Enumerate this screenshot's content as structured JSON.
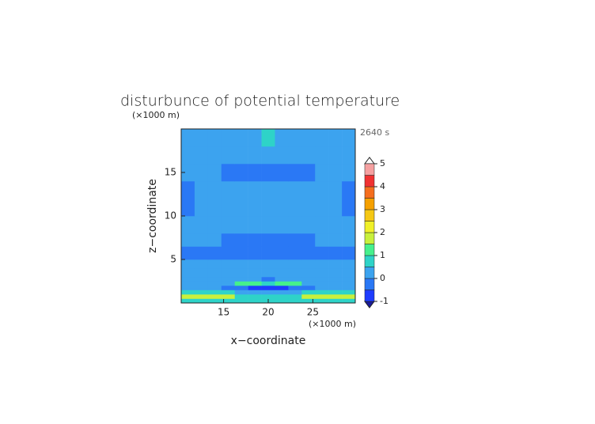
{
  "chart_data": {
    "type": "contour",
    "title": "disturbunce of potential temperature",
    "xlabel": "x−coordinate",
    "ylabel": "z−coordinate",
    "x_unit": "(×1000 m)",
    "y_unit": "(×1000 m)",
    "time_label": "2640 s",
    "xlim": [
      10.25,
      29.75
    ],
    "ylim": [
      0,
      20
    ],
    "xticks": [
      15,
      20,
      25
    ],
    "yticks": [
      5,
      10,
      15
    ],
    "x_edges": [
      10.25,
      11.75,
      13.25,
      14.75,
      16.25,
      17.75,
      19.25,
      20.75,
      22.25,
      23.75,
      25.25,
      26.75,
      28.25,
      29.75
    ],
    "y_edges": [
      0,
      0.5,
      1,
      1.5,
      2,
      2.5,
      3,
      4,
      5,
      6.5,
      8,
      10,
      12,
      14,
      16,
      18,
      20
    ],
    "z": [
      [
        0.75,
        0.75,
        0.75,
        0.75,
        0.75,
        0.75,
        0.75,
        0.75,
        0.75,
        0.75,
        0.75,
        0.75,
        0.75
      ],
      [
        1.75,
        1.75,
        1.75,
        1.75,
        0.75,
        0.75,
        0.75,
        0.75,
        0.75,
        1.75,
        1.75,
        1.75,
        1.75
      ],
      [
        0.75,
        0.75,
        0.75,
        0.75,
        0.25,
        0.25,
        0.25,
        0.25,
        0.25,
        0.75,
        0.75,
        0.75,
        0.75
      ],
      [
        0.25,
        0.25,
        0.25,
        -0.25,
        -0.25,
        -0.75,
        -0.75,
        -0.75,
        -0.25,
        -0.25,
        0.25,
        0.25,
        0.25
      ],
      [
        0.25,
        0.25,
        0.25,
        0.25,
        1.25,
        1.25,
        0.75,
        1.25,
        1.25,
        0.25,
        0.25,
        0.25,
        0.25
      ],
      [
        0.25,
        0.25,
        0.25,
        0.25,
        0.25,
        0.25,
        -0.25,
        0.25,
        0.25,
        0.25,
        0.25,
        0.25,
        0.25
      ],
      [
        0.25,
        0.25,
        0.25,
        0.25,
        0.25,
        0.25,
        0.25,
        0.25,
        0.25,
        0.25,
        0.25,
        0.25,
        0.25
      ],
      [
        0.25,
        0.25,
        0.25,
        0.25,
        0.25,
        0.25,
        0.25,
        0.25,
        0.25,
        0.25,
        0.25,
        0.25,
        0.25
      ],
      [
        -0.25,
        -0.25,
        -0.25,
        -0.25,
        -0.25,
        -0.25,
        -0.25,
        -0.25,
        -0.25,
        -0.25,
        -0.25,
        -0.25,
        -0.25
      ],
      [
        0.25,
        0.25,
        0.25,
        -0.25,
        -0.25,
        -0.25,
        -0.25,
        -0.25,
        -0.25,
        -0.25,
        0.25,
        0.25,
        0.25
      ],
      [
        0.25,
        0.25,
        0.25,
        0.25,
        0.25,
        0.25,
        0.25,
        0.25,
        0.25,
        0.25,
        0.25,
        0.25,
        0.25
      ],
      [
        -0.25,
        0.25,
        0.25,
        0.25,
        0.25,
        0.25,
        0.25,
        0.25,
        0.25,
        0.25,
        0.25,
        0.25,
        -0.25
      ],
      [
        -0.25,
        0.25,
        0.25,
        0.25,
        0.25,
        0.25,
        0.25,
        0.25,
        0.25,
        0.25,
        0.25,
        0.25,
        -0.25
      ],
      [
        0.25,
        0.25,
        0.25,
        -0.25,
        -0.25,
        -0.25,
        -0.25,
        -0.25,
        -0.25,
        -0.25,
        0.25,
        0.25,
        0.25
      ],
      [
        0.25,
        0.25,
        0.25,
        0.25,
        0.25,
        0.25,
        0.25,
        0.25,
        0.25,
        0.25,
        0.25,
        0.25,
        0.25
      ],
      [
        0.25,
        0.25,
        0.25,
        0.25,
        0.25,
        0.25,
        0.75,
        0.25,
        0.25,
        0.25,
        0.25,
        0.25,
        0.25
      ]
    ],
    "colorbar": {
      "levels": [
        -1,
        -0.5,
        0,
        0.5,
        1,
        1.5,
        2,
        2.5,
        3,
        3.5,
        4,
        4.5,
        5
      ],
      "colors": [
        "#1e3cff",
        "#2a78f5",
        "#3ca3ef",
        "#2ed3c8",
        "#46f08c",
        "#c8f03c",
        "#f0f028",
        "#f5c814",
        "#f5a000",
        "#f56e1e",
        "#f03232",
        "#f5a0a0"
      ],
      "ticks": [
        -1,
        0,
        1,
        2,
        3,
        4,
        5
      ]
    }
  }
}
